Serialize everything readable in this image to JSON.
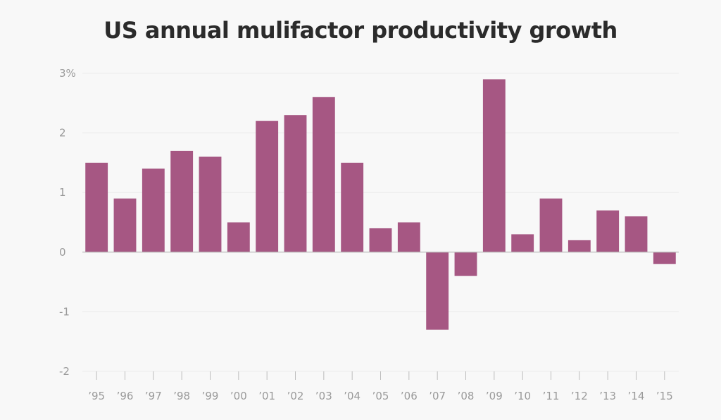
{
  "chart_data": {
    "type": "bar",
    "title": "US annual mulifactor productivity growth",
    "categories": [
      "’95",
      "’96",
      "’97",
      "’98",
      "’99",
      "’00",
      "’01",
      "’02",
      "’03",
      "’04",
      "’05",
      "’06",
      "’07",
      "’08",
      "’09",
      "’10",
      "’11",
      "’12",
      "’13",
      "’14",
      "’15"
    ],
    "values": [
      1.5,
      0.9,
      1.4,
      1.7,
      1.6,
      0.5,
      2.2,
      2.3,
      2.6,
      1.5,
      0.4,
      0.5,
      -1.3,
      -0.4,
      2.9,
      0.3,
      0.9,
      0.2,
      0.7,
      0.6,
      -0.2
    ],
    "ylim": [
      -2,
      3
    ],
    "yticks": [
      3,
      2,
      1,
      0,
      -1,
      -2
    ],
    "ytick_labels": [
      "3%",
      "2",
      "1",
      "0",
      "-1",
      "-2"
    ],
    "xlabel": "",
    "ylabel": "",
    "grid": true,
    "bar_color": "#a65783",
    "gridline_color": "#ebebeb",
    "zero_line_color": "#b8b8b8"
  }
}
